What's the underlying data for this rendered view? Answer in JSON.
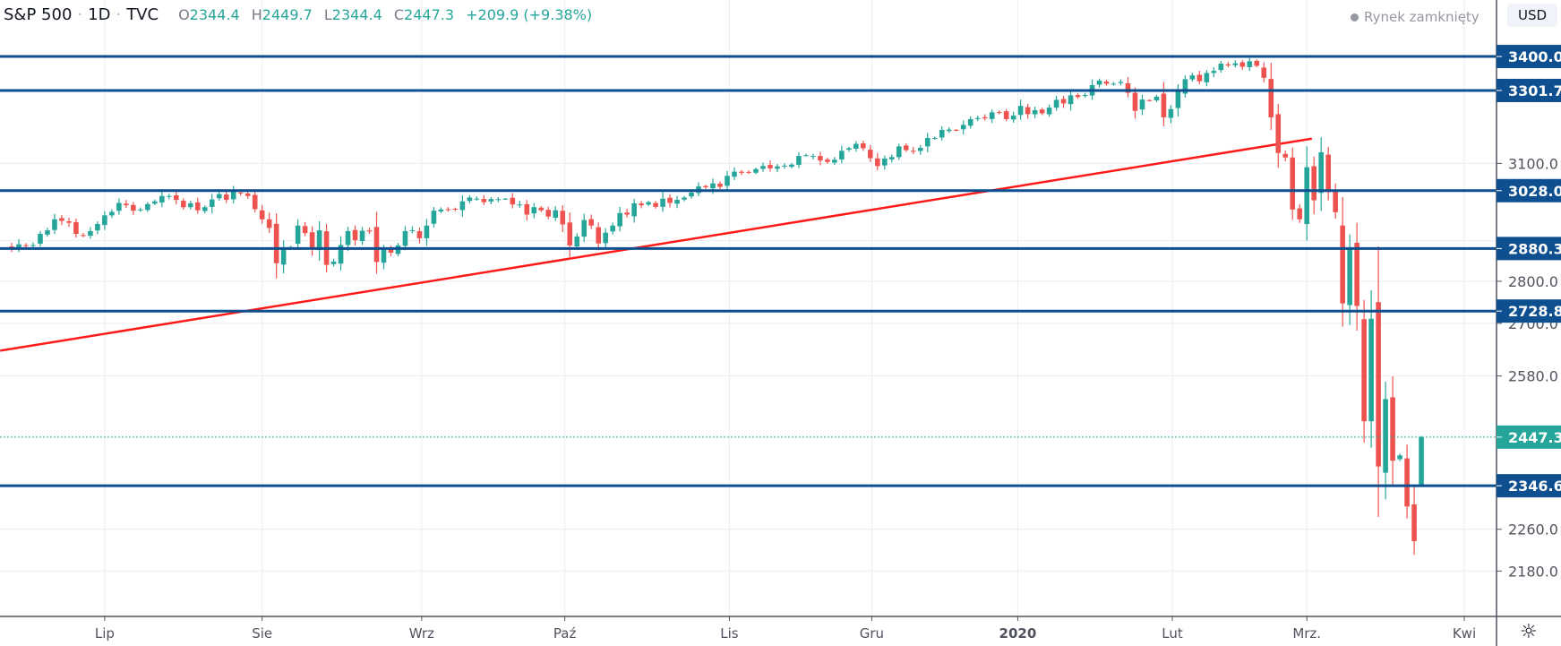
{
  "header": {
    "symbol": "S&P 500",
    "interval": "1D",
    "source": "TVC",
    "separator": "·",
    "open_label": "O",
    "open": "2344.4",
    "high_label": "H",
    "high": "2449.7",
    "low_label": "L",
    "low": "2344.4",
    "close_label": "C",
    "close": "2447.3",
    "change": "+209.9 (+9.38%)"
  },
  "status": "Rynek zamknięty",
  "currency_button": "USD",
  "colors": {
    "up": "#26a69a",
    "down": "#ef5350",
    "level_line": "#0e4f90",
    "trend_line": "#ff1a1a",
    "grid": "#e9eef3",
    "axis": "#50535e"
  },
  "chart_data": {
    "type": "candlestick",
    "title": "S&P 500 · 1D · TVC",
    "y_scale": "log",
    "ylim": [
      2100,
      3480
    ],
    "y_ticks": [
      "3100.0",
      "2800.0",
      "2700.0",
      "2580.0",
      "2260.0",
      "2180.0"
    ],
    "x_ticks": [
      {
        "label": "Lip",
        "bar": 11
      },
      {
        "label": "Sie",
        "bar": 33
      },
      {
        "label": "Wrz",
        "bar": 55.3
      },
      {
        "label": "Paź",
        "bar": 75.3
      },
      {
        "label": "Lis",
        "bar": 98.3
      },
      {
        "label": "Gru",
        "bar": 118.2
      },
      {
        "label": "2020",
        "bar": 138.6
      },
      {
        "label": "Lut",
        "bar": 160.2
      },
      {
        "label": "Mrz.",
        "bar": 179
      },
      {
        "label": "Kwi",
        "bar": 201
      }
    ],
    "first_date": "2019-06-11",
    "last_date": "2020-03-24",
    "closes": [
      2886,
      2879,
      2891,
      2887,
      2889,
      2917,
      2926,
      2954,
      2950,
      2945,
      2917,
      2913,
      2924,
      2942,
      2964,
      2973,
      2996,
      2990,
      2976,
      2979,
      2993,
      3000,
      3014,
      3014,
      3004,
      2985,
      2995,
      2977,
      2985,
      3005,
      3019,
      3004,
      3026,
      3021,
      3014,
      2980,
      2954,
      2932,
      2844,
      2882,
      2884,
      2938,
      2919,
      2883,
      2926,
      2840,
      2848,
      2889,
      2924,
      2901,
      2925,
      2923,
      2847,
      2878,
      2870,
      2888,
      2924,
      2926,
      2906,
      2938,
      2976,
      2979,
      2978,
      2979,
      3000,
      3010,
      3007,
      2998,
      3006,
      3006,
      3007,
      2992,
      2992,
      2966,
      2985,
      2977,
      2961,
      2977,
      2941,
      2888,
      2910,
      2952,
      2938,
      2893,
      2920,
      2938,
      2970,
      2966,
      2995,
      2990,
      2998,
      2986,
      3007,
      2996,
      3004,
      3010,
      3023,
      3039,
      3037,
      3047,
      3038,
      3067,
      3078,
      3075,
      3077,
      3085,
      3093,
      3087,
      3092,
      3094,
      3097,
      3120,
      3122,
      3120,
      3108,
      3104,
      3110,
      3134,
      3141,
      3153,
      3141,
      3114,
      3093,
      3113,
      3117,
      3146,
      3136,
      3133,
      3142,
      3169,
      3169,
      3191,
      3192,
      3191,
      3205,
      3221,
      3224,
      3223,
      3240,
      3240,
      3221,
      3231,
      3258,
      3235,
      3246,
      3237,
      3253,
      3275,
      3265,
      3288,
      3283,
      3289,
      3317,
      3330,
      3321,
      3321,
      3326,
      3295,
      3244,
      3276,
      3273,
      3284,
      3226,
      3249,
      3298,
      3334,
      3345,
      3328,
      3352,
      3358,
      3379,
      3374,
      3380,
      3370,
      3386,
      3373,
      3338,
      3226,
      3128,
      3116,
      2979,
      2954,
      3090,
      3003,
      3130,
      3024,
      2972,
      2747,
      2882,
      2741,
      2481,
      2711,
      2386,
      2529,
      2398,
      2409,
      2305,
      2237,
      2447.3
    ],
    "last_bar_ohlc": [
      2344.4,
      2449.7,
      2344.4,
      2447.3
    ],
    "horizontal_levels": [
      "3400.0",
      "3301.7",
      "3028.0",
      "2880.3",
      "2728.8",
      "2346.6"
    ],
    "last_price": "2447.3",
    "trend_line": {
      "start_bar": -3.6,
      "start_price": 2637,
      "end_bar": 179.7,
      "end_price": 3167
    }
  }
}
